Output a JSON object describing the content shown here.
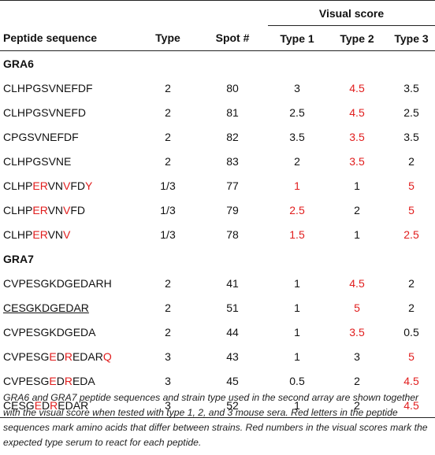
{
  "header": {
    "group_label": "Visual score",
    "cols": [
      "Peptide sequence",
      "Type",
      "Spot #",
      "Type 1",
      "Type 2",
      "Type 3"
    ]
  },
  "groups": [
    {
      "name": "GRA6",
      "rows": [
        {
          "seq": [
            {
              "t": "CLHPGSVNEFDF",
              "r": false
            }
          ],
          "type": "2",
          "spot": "80",
          "t1": "3",
          "t2": "4.5",
          "t3": "3.5",
          "red": [
            false,
            true,
            false
          ]
        },
        {
          "seq": [
            {
              "t": "CLHPGSVNEFD",
              "r": false
            }
          ],
          "type": "2",
          "spot": "81",
          "t1": "2.5",
          "t2": "4.5",
          "t3": "2.5",
          "red": [
            false,
            true,
            false
          ]
        },
        {
          "seq": [
            {
              "t": "CPGSVNEFDF",
              "r": false
            }
          ],
          "type": "2",
          "spot": "82",
          "t1": "3.5",
          "t2": "3.5",
          "t3": "3.5",
          "red": [
            false,
            true,
            false
          ]
        },
        {
          "seq": [
            {
              "t": "CLHPGSVNE",
              "r": false
            }
          ],
          "type": "2",
          "spot": "83",
          "t1": "2",
          "t2": "3.5",
          "t3": "2",
          "red": [
            false,
            true,
            false
          ]
        },
        {
          "seq": [
            {
              "t": "CLHP",
              "r": false
            },
            {
              "t": "ER",
              "r": true
            },
            {
              "t": "VN",
              "r": false
            },
            {
              "t": "V",
              "r": true
            },
            {
              "t": "FD",
              "r": false
            },
            {
              "t": "Y",
              "r": true
            }
          ],
          "type": "1/3",
          "spot": "77",
          "t1": "1",
          "t2": "1",
          "t3": "5",
          "red": [
            true,
            false,
            true
          ]
        },
        {
          "seq": [
            {
              "t": "CLHP",
              "r": false
            },
            {
              "t": "ER",
              "r": true
            },
            {
              "t": "VN",
              "r": false
            },
            {
              "t": "V",
              "r": true
            },
            {
              "t": "FD",
              "r": false
            }
          ],
          "type": "1/3",
          "spot": "79",
          "t1": "2.5",
          "t2": "2",
          "t3": "5",
          "red": [
            true,
            false,
            true
          ]
        },
        {
          "seq": [
            {
              "t": "CLHP",
              "r": false
            },
            {
              "t": "ER",
              "r": true
            },
            {
              "t": "VN",
              "r": false
            },
            {
              "t": "V",
              "r": true
            }
          ],
          "type": "1/3",
          "spot": "78",
          "t1": "1.5",
          "t2": "1",
          "t3": "2.5",
          "red": [
            true,
            false,
            true
          ]
        }
      ]
    },
    {
      "name": "GRA7",
      "rows": [
        {
          "seq": [
            {
              "t": "CVPESGKDGEDARH",
              "r": false
            }
          ],
          "type": "2",
          "spot": "41",
          "t1": "1",
          "t2": "4.5",
          "t3": "2",
          "red": [
            false,
            true,
            false
          ]
        },
        {
          "seq": [
            {
              "t": "CESGKDGEDAR",
              "r": false
            }
          ],
          "underline": true,
          "type": "2",
          "spot": "51",
          "t1": "1",
          "t2": "5",
          "t3": "2",
          "red": [
            false,
            true,
            false
          ]
        },
        {
          "seq": [
            {
              "t": "CVPESGKDGEDA",
              "r": false
            }
          ],
          "type": "2",
          "spot": "44",
          "t1": "1",
          "t2": "3.5",
          "t3": "0.5",
          "red": [
            false,
            true,
            false
          ]
        },
        {
          "seq": [
            {
              "t": "CVPESG",
              "r": false
            },
            {
              "t": "E",
              "r": true
            },
            {
              "t": "D",
              "r": false
            },
            {
              "t": "R",
              "r": true
            },
            {
              "t": "EDAR",
              "r": false
            },
            {
              "t": "Q",
              "r": true
            }
          ],
          "type": "3",
          "spot": "43",
          "t1": "1",
          "t2": "3",
          "t3": "5",
          "red": [
            false,
            false,
            true
          ]
        },
        {
          "seq": [
            {
              "t": "CVPESG",
              "r": false
            },
            {
              "t": "E",
              "r": true
            },
            {
              "t": "D",
              "r": false
            },
            {
              "t": "R",
              "r": true
            },
            {
              "t": "EDA",
              "r": false
            }
          ],
          "type": "3",
          "spot": "45",
          "t1": "0.5",
          "t2": "2",
          "t3": "4.5",
          "red": [
            false,
            false,
            true
          ]
        },
        {
          "seq": [
            {
              "t": "CESG",
              "r": false
            },
            {
              "t": "E",
              "r": true
            },
            {
              "t": "D",
              "r": false
            },
            {
              "t": "R",
              "r": true
            },
            {
              "t": "EDAR",
              "r": false
            }
          ],
          "type": "3",
          "spot": "52",
          "t1": "1",
          "t2": "2",
          "t3": "4.5",
          "red": [
            false,
            false,
            true
          ]
        }
      ]
    }
  ],
  "caption": "GRA6 and GRA7 peptide sequences and strain type used in the second array are shown together with the visual score when tested with type 1, 2, and 3 mouse sera. Red letters in the peptide sequences mark amino acids that differ between strains. Red numbers in the visual scores mark the expected type serum to react for each peptide.",
  "colors": {
    "highlight": "#e11d1d",
    "text": "#111111"
  }
}
